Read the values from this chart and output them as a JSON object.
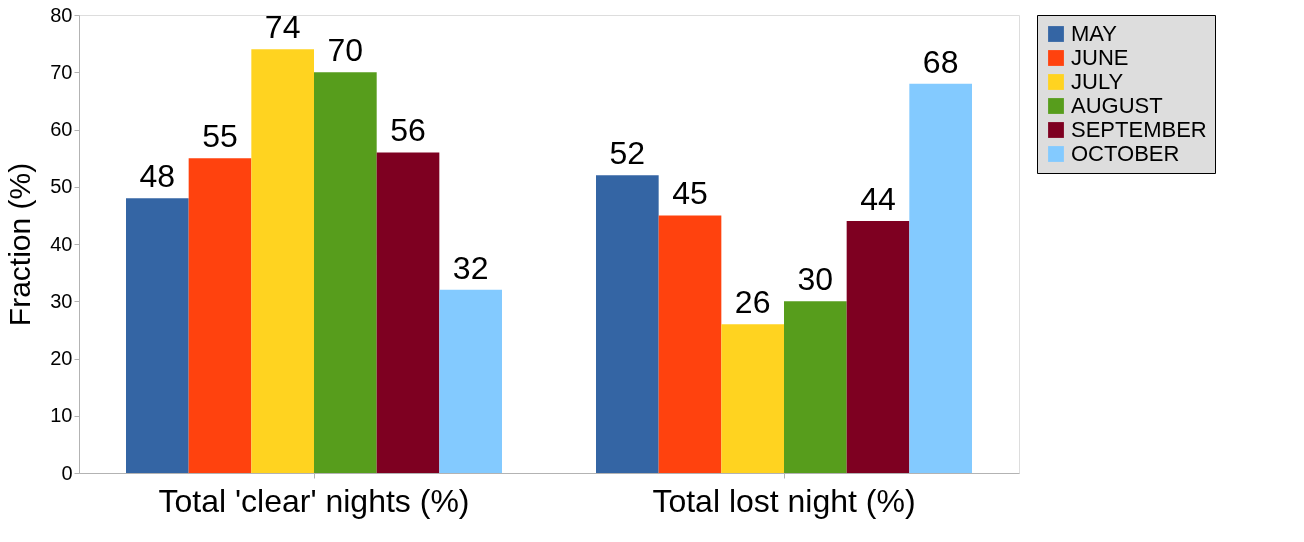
{
  "chart_data": {
    "type": "bar",
    "ylabel": "Fraction (%)",
    "categories": [
      "Total 'clear' nights (%)",
      "Total lost night (%)"
    ],
    "series": [
      {
        "name": "MAY",
        "color": "#3465a4",
        "values": [
          48,
          52
        ]
      },
      {
        "name": "JUNE",
        "color": "#ff420e",
        "values": [
          55,
          45
        ]
      },
      {
        "name": "JULY",
        "color": "#ffd320",
        "values": [
          74,
          26
        ]
      },
      {
        "name": "AUGUST",
        "color": "#579d1c",
        "values": [
          70,
          30
        ]
      },
      {
        "name": "SEPTEMBER",
        "color": "#7e0021",
        "values": [
          56,
          44
        ]
      },
      {
        "name": "OCTOBER",
        "color": "#83caff",
        "values": [
          32,
          68
        ]
      }
    ],
    "ylim": [
      0,
      80
    ],
    "yticks": [
      0,
      10,
      20,
      30,
      40,
      50,
      60,
      70,
      80
    ],
    "data_labels": true,
    "legend": "right",
    "grid": false
  }
}
